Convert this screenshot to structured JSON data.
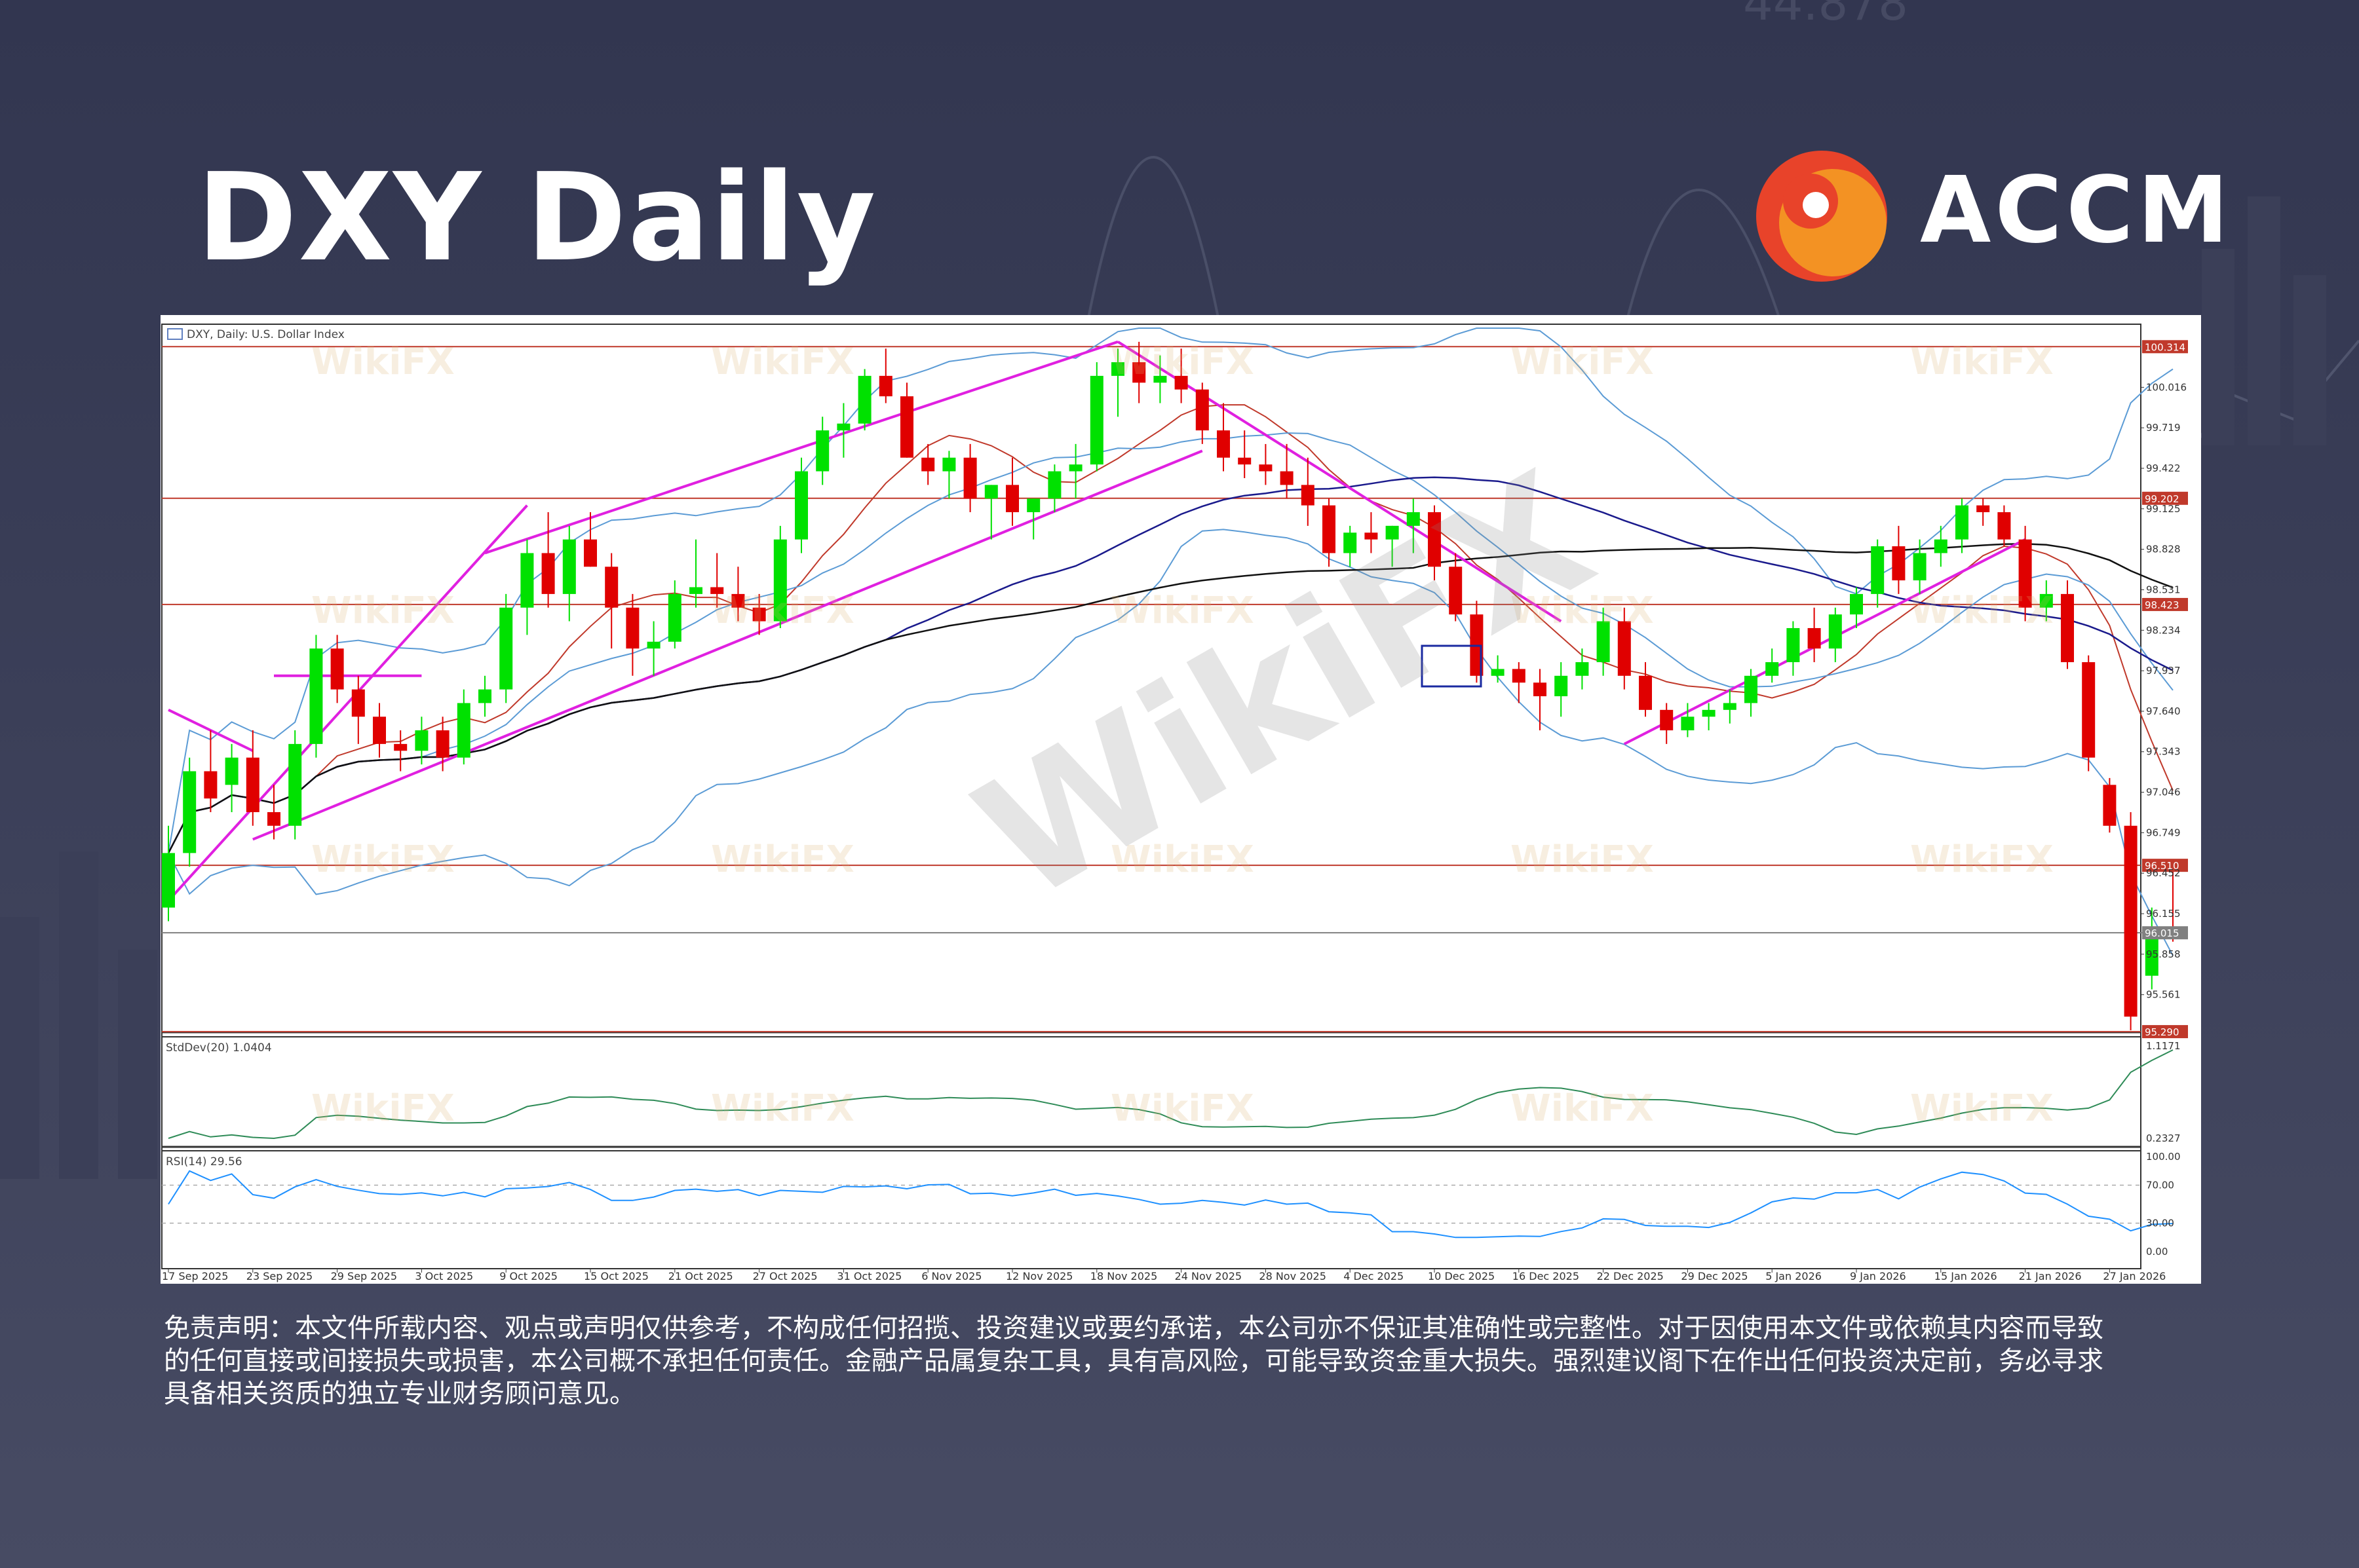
{
  "header": {
    "title": "DXY Daily",
    "brand": "ACCM"
  },
  "watermark": {
    "text": "WikiFX"
  },
  "chart_data": {
    "type": "candlestick",
    "symbol_label": "DXY, Daily:  U.S. Dollar Index",
    "price_axis": {
      "ticks": [
        "100.016",
        "99.719",
        "99.422",
        "99.125",
        "98.828",
        "98.531",
        "98.234",
        "97.937",
        "97.640",
        "97.343",
        "97.046",
        "96.749",
        "96.452",
        "96.155",
        "95.858",
        "95.561"
      ],
      "range": [
        95.3,
        100.45
      ],
      "marked_levels": [
        {
          "value": 100.314,
          "label": "100.314",
          "color": "#c0392b"
        },
        {
          "value": 99.202,
          "label": "99.202",
          "color": "#c0392b"
        },
        {
          "value": 98.423,
          "label": "98.423",
          "color": "#c0392b"
        },
        {
          "value": 96.51,
          "label": "96.510",
          "color": "#c0392b"
        },
        {
          "value": 96.015,
          "label": "96.015",
          "color": "#808080"
        },
        {
          "value": 95.29,
          "label": "95.290",
          "color": "#c0392b"
        }
      ]
    },
    "x_axis": {
      "labels": [
        "17 Sep 2025",
        "23 Sep 2025",
        "29 Sep 2025",
        "3 Oct 2025",
        "9 Oct 2025",
        "15 Oct 2025",
        "21 Oct 2025",
        "27 Oct 2025",
        "31 Oct 2025",
        "6 Nov 2025",
        "12 Nov 2025",
        "18 Nov 2025",
        "24 Nov 2025",
        "28 Nov 2025",
        "4 Dec 2025",
        "10 Dec 2025",
        "16 Dec 2025",
        "22 Dec 2025",
        "29 Dec 2025",
        "5 Jan 2026",
        "9 Jan 2026",
        "15 Jan 2026",
        "21 Jan 2026",
        "27 Jan 2026"
      ],
      "label_bar_index": [
        0,
        4,
        8,
        12,
        16,
        20,
        24,
        28,
        32,
        36,
        40,
        44,
        48,
        52,
        56,
        60,
        64,
        68,
        72,
        76,
        80,
        84,
        88,
        92
      ]
    },
    "candles": [
      [
        96.2,
        96.8,
        96.1,
        96.6
      ],
      [
        96.6,
        97.3,
        96.5,
        97.2
      ],
      [
        97.2,
        97.5,
        96.9,
        97.0
      ],
      [
        97.1,
        97.4,
        96.9,
        97.3
      ],
      [
        97.3,
        97.5,
        96.8,
        96.9
      ],
      [
        96.9,
        97.1,
        96.7,
        96.8
      ],
      [
        96.8,
        97.5,
        96.7,
        97.4
      ],
      [
        97.4,
        98.2,
        97.3,
        98.1
      ],
      [
        98.1,
        98.2,
        97.7,
        97.8
      ],
      [
        97.8,
        97.9,
        97.4,
        97.6
      ],
      [
        97.6,
        97.7,
        97.3,
        97.4
      ],
      [
        97.4,
        97.5,
        97.2,
        97.35
      ],
      [
        97.35,
        97.6,
        97.25,
        97.5
      ],
      [
        97.5,
        97.6,
        97.2,
        97.3
      ],
      [
        97.3,
        97.8,
        97.25,
        97.7
      ],
      [
        97.7,
        97.9,
        97.6,
        97.8
      ],
      [
        97.8,
        98.5,
        97.7,
        98.4
      ],
      [
        98.4,
        98.9,
        98.2,
        98.8
      ],
      [
        98.8,
        99.1,
        98.4,
        98.5
      ],
      [
        98.5,
        99.0,
        98.3,
        98.9
      ],
      [
        98.9,
        99.1,
        98.7,
        98.7
      ],
      [
        98.7,
        98.8,
        98.1,
        98.4
      ],
      [
        98.4,
        98.5,
        97.9,
        98.1
      ],
      [
        98.1,
        98.3,
        97.9,
        98.15
      ],
      [
        98.15,
        98.6,
        98.1,
        98.5
      ],
      [
        98.5,
        98.9,
        98.4,
        98.55
      ],
      [
        98.55,
        98.8,
        98.4,
        98.5
      ],
      [
        98.5,
        98.7,
        98.3,
        98.4
      ],
      [
        98.4,
        98.5,
        98.2,
        98.3
      ],
      [
        98.3,
        99.0,
        98.25,
        98.9
      ],
      [
        98.9,
        99.5,
        98.8,
        99.4
      ],
      [
        99.4,
        99.8,
        99.3,
        99.7
      ],
      [
        99.7,
        99.9,
        99.5,
        99.75
      ],
      [
        99.75,
        100.15,
        99.7,
        100.1
      ],
      [
        100.1,
        100.3,
        99.9,
        99.95
      ],
      [
        99.95,
        100.05,
        99.5,
        99.5
      ],
      [
        99.5,
        99.6,
        99.3,
        99.4
      ],
      [
        99.4,
        99.55,
        99.2,
        99.5
      ],
      [
        99.5,
        99.6,
        99.1,
        99.2
      ],
      [
        99.2,
        99.3,
        98.9,
        99.3
      ],
      [
        99.3,
        99.5,
        99.0,
        99.1
      ],
      [
        99.1,
        99.2,
        98.9,
        99.2
      ],
      [
        99.2,
        99.45,
        99.1,
        99.4
      ],
      [
        99.4,
        99.6,
        99.2,
        99.45
      ],
      [
        99.45,
        100.2,
        99.4,
        100.1
      ],
      [
        100.1,
        100.3,
        99.8,
        100.2
      ],
      [
        100.2,
        100.35,
        99.9,
        100.05
      ],
      [
        100.05,
        100.25,
        99.9,
        100.1
      ],
      [
        100.1,
        100.3,
        99.9,
        100.0
      ],
      [
        100.0,
        100.05,
        99.6,
        99.7
      ],
      [
        99.7,
        99.9,
        99.4,
        99.5
      ],
      [
        99.5,
        99.7,
        99.35,
        99.45
      ],
      [
        99.45,
        99.6,
        99.3,
        99.4
      ],
      [
        99.4,
        99.6,
        99.2,
        99.3
      ],
      [
        99.3,
        99.5,
        99.0,
        99.15
      ],
      [
        99.15,
        99.2,
        98.7,
        98.8
      ],
      [
        98.8,
        99.0,
        98.7,
        98.95
      ],
      [
        98.95,
        99.1,
        98.8,
        98.9
      ],
      [
        98.9,
        99.0,
        98.7,
        99.0
      ],
      [
        99.0,
        99.2,
        98.8,
        99.1
      ],
      [
        99.1,
        99.15,
        98.6,
        98.7
      ],
      [
        98.7,
        98.8,
        98.3,
        98.35
      ],
      [
        98.35,
        98.45,
        97.85,
        97.9
      ],
      [
        97.9,
        98.05,
        97.85,
        97.95
      ],
      [
        97.95,
        98.0,
        97.7,
        97.85
      ],
      [
        97.85,
        97.95,
        97.5,
        97.75
      ],
      [
        97.75,
        98.0,
        97.6,
        97.9
      ],
      [
        97.9,
        98.1,
        97.8,
        98.0
      ],
      [
        98.0,
        98.4,
        97.9,
        98.3
      ],
      [
        98.3,
        98.4,
        97.8,
        97.9
      ],
      [
        97.9,
        98.0,
        97.6,
        97.65
      ],
      [
        97.65,
        97.7,
        97.4,
        97.5
      ],
      [
        97.5,
        97.7,
        97.45,
        97.6
      ],
      [
        97.6,
        97.7,
        97.5,
        97.65
      ],
      [
        97.65,
        97.8,
        97.55,
        97.7
      ],
      [
        97.7,
        97.95,
        97.6,
        97.9
      ],
      [
        97.9,
        98.1,
        97.85,
        98.0
      ],
      [
        98.0,
        98.3,
        97.9,
        98.25
      ],
      [
        98.25,
        98.4,
        98.0,
        98.1
      ],
      [
        98.1,
        98.4,
        98.0,
        98.35
      ],
      [
        98.35,
        98.55,
        98.25,
        98.5
      ],
      [
        98.5,
        98.9,
        98.4,
        98.85
      ],
      [
        98.85,
        99.0,
        98.5,
        98.6
      ],
      [
        98.6,
        98.9,
        98.5,
        98.8
      ],
      [
        98.8,
        99.0,
        98.7,
        98.9
      ],
      [
        98.9,
        99.2,
        98.8,
        99.15
      ],
      [
        99.15,
        99.2,
        99.0,
        99.1
      ],
      [
        99.1,
        99.15,
        98.85,
        98.9
      ],
      [
        98.9,
        99.0,
        98.3,
        98.4
      ],
      [
        98.4,
        98.6,
        98.3,
        98.5
      ],
      [
        98.5,
        98.6,
        97.95,
        98.0
      ],
      [
        98.0,
        98.05,
        97.2,
        97.3
      ],
      [
        97.1,
        97.15,
        96.75,
        96.8
      ],
      [
        96.8,
        96.9,
        95.3,
        95.4
      ],
      [
        95.7,
        96.2,
        95.6,
        96.05
      ],
      [
        96.05,
        96.5,
        95.95,
        96.02
      ]
    ],
    "overlays": {
      "trendlines": "magenta",
      "moving_averages": [
        "red",
        "blue",
        "navy",
        "black"
      ],
      "bollinger_bands": "light-blue"
    },
    "indicators": [
      {
        "name": "StdDev(20) 1.0404",
        "axis_ticks": [
          "1.1171",
          "0.2327"
        ]
      },
      {
        "name": "RSI(14) 29.56",
        "axis_ticks": [
          "100.00",
          "70.00",
          "30.00",
          "0.00"
        ],
        "last": 29.56
      }
    ]
  },
  "disclaimer": {
    "lines": [
      "免责声明：本文件所载内容、观点或声明仅供参考，不构成任何招揽、投资建议或要约承诺，本公司亦不保证其准确性或完整性。对于因使用本文件或依赖其内容而导致",
      "的任何直接或间接损失或损害，本公司概不承担任何责任。金融产品属复杂工具，具有高风险，可能导致资金重大损失。强烈建议阁下在作出任何投资决定前，务必寻求",
      "具备相关资质的独立专业财务顾问意见。"
    ]
  }
}
